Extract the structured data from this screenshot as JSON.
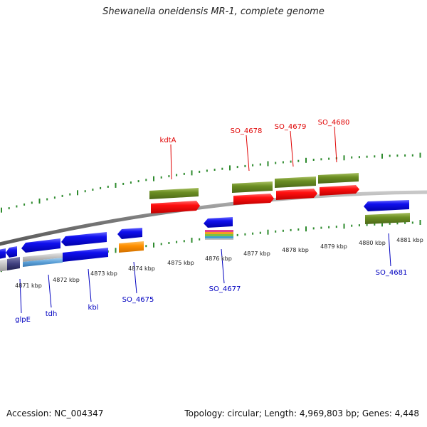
{
  "title": "Shewanella oneidensis MR-1, complete genome",
  "footer": {
    "accession": "Accession: NC_004347",
    "summary": "Topology: circular; Length: 4,969,803 bp; Genes: 4,448"
  },
  "colors": {
    "backbone": "#8a8a8a",
    "tick": "#2e8b2e",
    "tick_label": "#222222",
    "label_top": "#e00000",
    "label_bottom": "#0000c0",
    "cds_blue": "#1010ee",
    "cds_red": "#ff1010",
    "gene_green": "#6b8e23",
    "cds_orange": "#ff9000",
    "gene_lightblue": "#5aa0d8",
    "gene_grey": "#bfbfbf"
  },
  "ticks": [
    {
      "label": "4871 kbp"
    },
    {
      "label": "4872 kbp"
    },
    {
      "label": "4873 kbp"
    },
    {
      "label": "4874 kbp"
    },
    {
      "label": "4875 kbp"
    },
    {
      "label": "4876 kbp"
    },
    {
      "label": "4877 kbp"
    },
    {
      "label": "4878 kbp"
    },
    {
      "label": "4879 kbp"
    },
    {
      "label": "4880 kbp"
    },
    {
      "label": "4881 kbp"
    }
  ],
  "gene_labels_top": [
    {
      "label": "kdtA"
    },
    {
      "label": "SO_4678"
    },
    {
      "label": "SO_4679"
    },
    {
      "label": "SO_4680"
    }
  ],
  "gene_labels_bottom": [
    {
      "label": "glpE"
    },
    {
      "label": "tdh"
    },
    {
      "label": "kbl"
    },
    {
      "label": "SO_4675"
    },
    {
      "label": "SO_4677"
    },
    {
      "label": "SO_4681"
    }
  ]
}
